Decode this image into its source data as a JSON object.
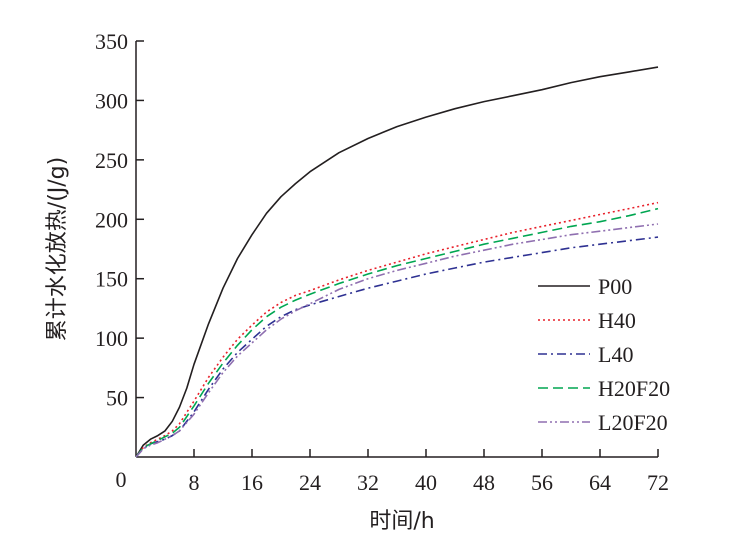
{
  "chart_data": {
    "type": "line",
    "title": "",
    "xlabel": "时间/h",
    "ylabel": "累计水化放热/(J/g)",
    "xlim": [
      0,
      72
    ],
    "ylim": [
      0,
      350
    ],
    "xticks": [
      8,
      16,
      24,
      32,
      40,
      48,
      56,
      64,
      72
    ],
    "yticks": [
      50,
      100,
      150,
      200,
      250,
      300,
      350
    ],
    "origin_label": "0",
    "grid": false,
    "legend_position": "right",
    "series": [
      {
        "name": "P00",
        "color": "#231f20",
        "dash": "solid",
        "x": [
          0,
          1,
          2,
          3,
          4,
          5,
          6,
          7,
          8,
          10,
          12,
          14,
          16,
          18,
          20,
          22,
          24,
          28,
          32,
          36,
          40,
          44,
          48,
          52,
          56,
          60,
          64,
          68,
          72
        ],
        "y": [
          0,
          10,
          15,
          18,
          22,
          30,
          42,
          58,
          78,
          112,
          142,
          167,
          187,
          205,
          219,
          230,
          240,
          256,
          268,
          278,
          286,
          293,
          299,
          304,
          309,
          315,
          320,
          324,
          328
        ]
      },
      {
        "name": "H40",
        "color": "#e8202a",
        "dash": "dot",
        "x": [
          0,
          1,
          2,
          3,
          4,
          5,
          6,
          8,
          10,
          12,
          14,
          16,
          18,
          20,
          22,
          24,
          28,
          32,
          36,
          40,
          44,
          48,
          52,
          56,
          60,
          64,
          68,
          72
        ],
        "y": [
          0,
          8,
          12,
          15,
          18,
          22,
          28,
          47,
          67,
          84,
          99,
          111,
          122,
          130,
          136,
          140,
          149,
          157,
          164,
          171,
          177,
          183,
          189,
          194,
          199,
          204,
          209,
          214
        ]
      },
      {
        "name": "L40",
        "color": "#2e3192",
        "dash": "dashdot",
        "x": [
          0,
          1,
          2,
          3,
          4,
          5,
          6,
          8,
          10,
          12,
          14,
          16,
          18,
          20,
          22,
          24,
          28,
          32,
          36,
          40,
          44,
          48,
          52,
          56,
          60,
          64,
          68,
          72
        ],
        "y": [
          0,
          7,
          11,
          13,
          15,
          18,
          22,
          38,
          57,
          74,
          88,
          99,
          110,
          118,
          124,
          128,
          135,
          142,
          148,
          154,
          159,
          164,
          168,
          172,
          176,
          179,
          182,
          185
        ]
      },
      {
        "name": "H20F20",
        "color": "#00a651",
        "dash": "dash",
        "x": [
          0,
          1,
          2,
          3,
          4,
          5,
          6,
          8,
          10,
          12,
          14,
          16,
          18,
          20,
          22,
          24,
          28,
          32,
          36,
          40,
          44,
          48,
          52,
          56,
          60,
          64,
          68,
          72
        ],
        "y": [
          0,
          8,
          11,
          14,
          17,
          20,
          25,
          43,
          62,
          79,
          94,
          107,
          118,
          126,
          132,
          137,
          146,
          154,
          161,
          167,
          173,
          179,
          184,
          189,
          194,
          198,
          203,
          209
        ]
      },
      {
        "name": "L20F20",
        "color": "#8f6fb0",
        "dash": "dashdotdot",
        "x": [
          0,
          1,
          2,
          3,
          4,
          5,
          6,
          8,
          10,
          12,
          14,
          16,
          18,
          20,
          22,
          24,
          28,
          32,
          36,
          40,
          44,
          48,
          52,
          56,
          60,
          64,
          68,
          72
        ],
        "y": [
          0,
          7,
          10,
          12,
          15,
          18,
          22,
          36,
          54,
          71,
          85,
          96,
          107,
          116,
          123,
          129,
          141,
          150,
          157,
          163,
          169,
          174,
          179,
          183,
          187,
          190,
          193,
          196
        ]
      }
    ]
  }
}
